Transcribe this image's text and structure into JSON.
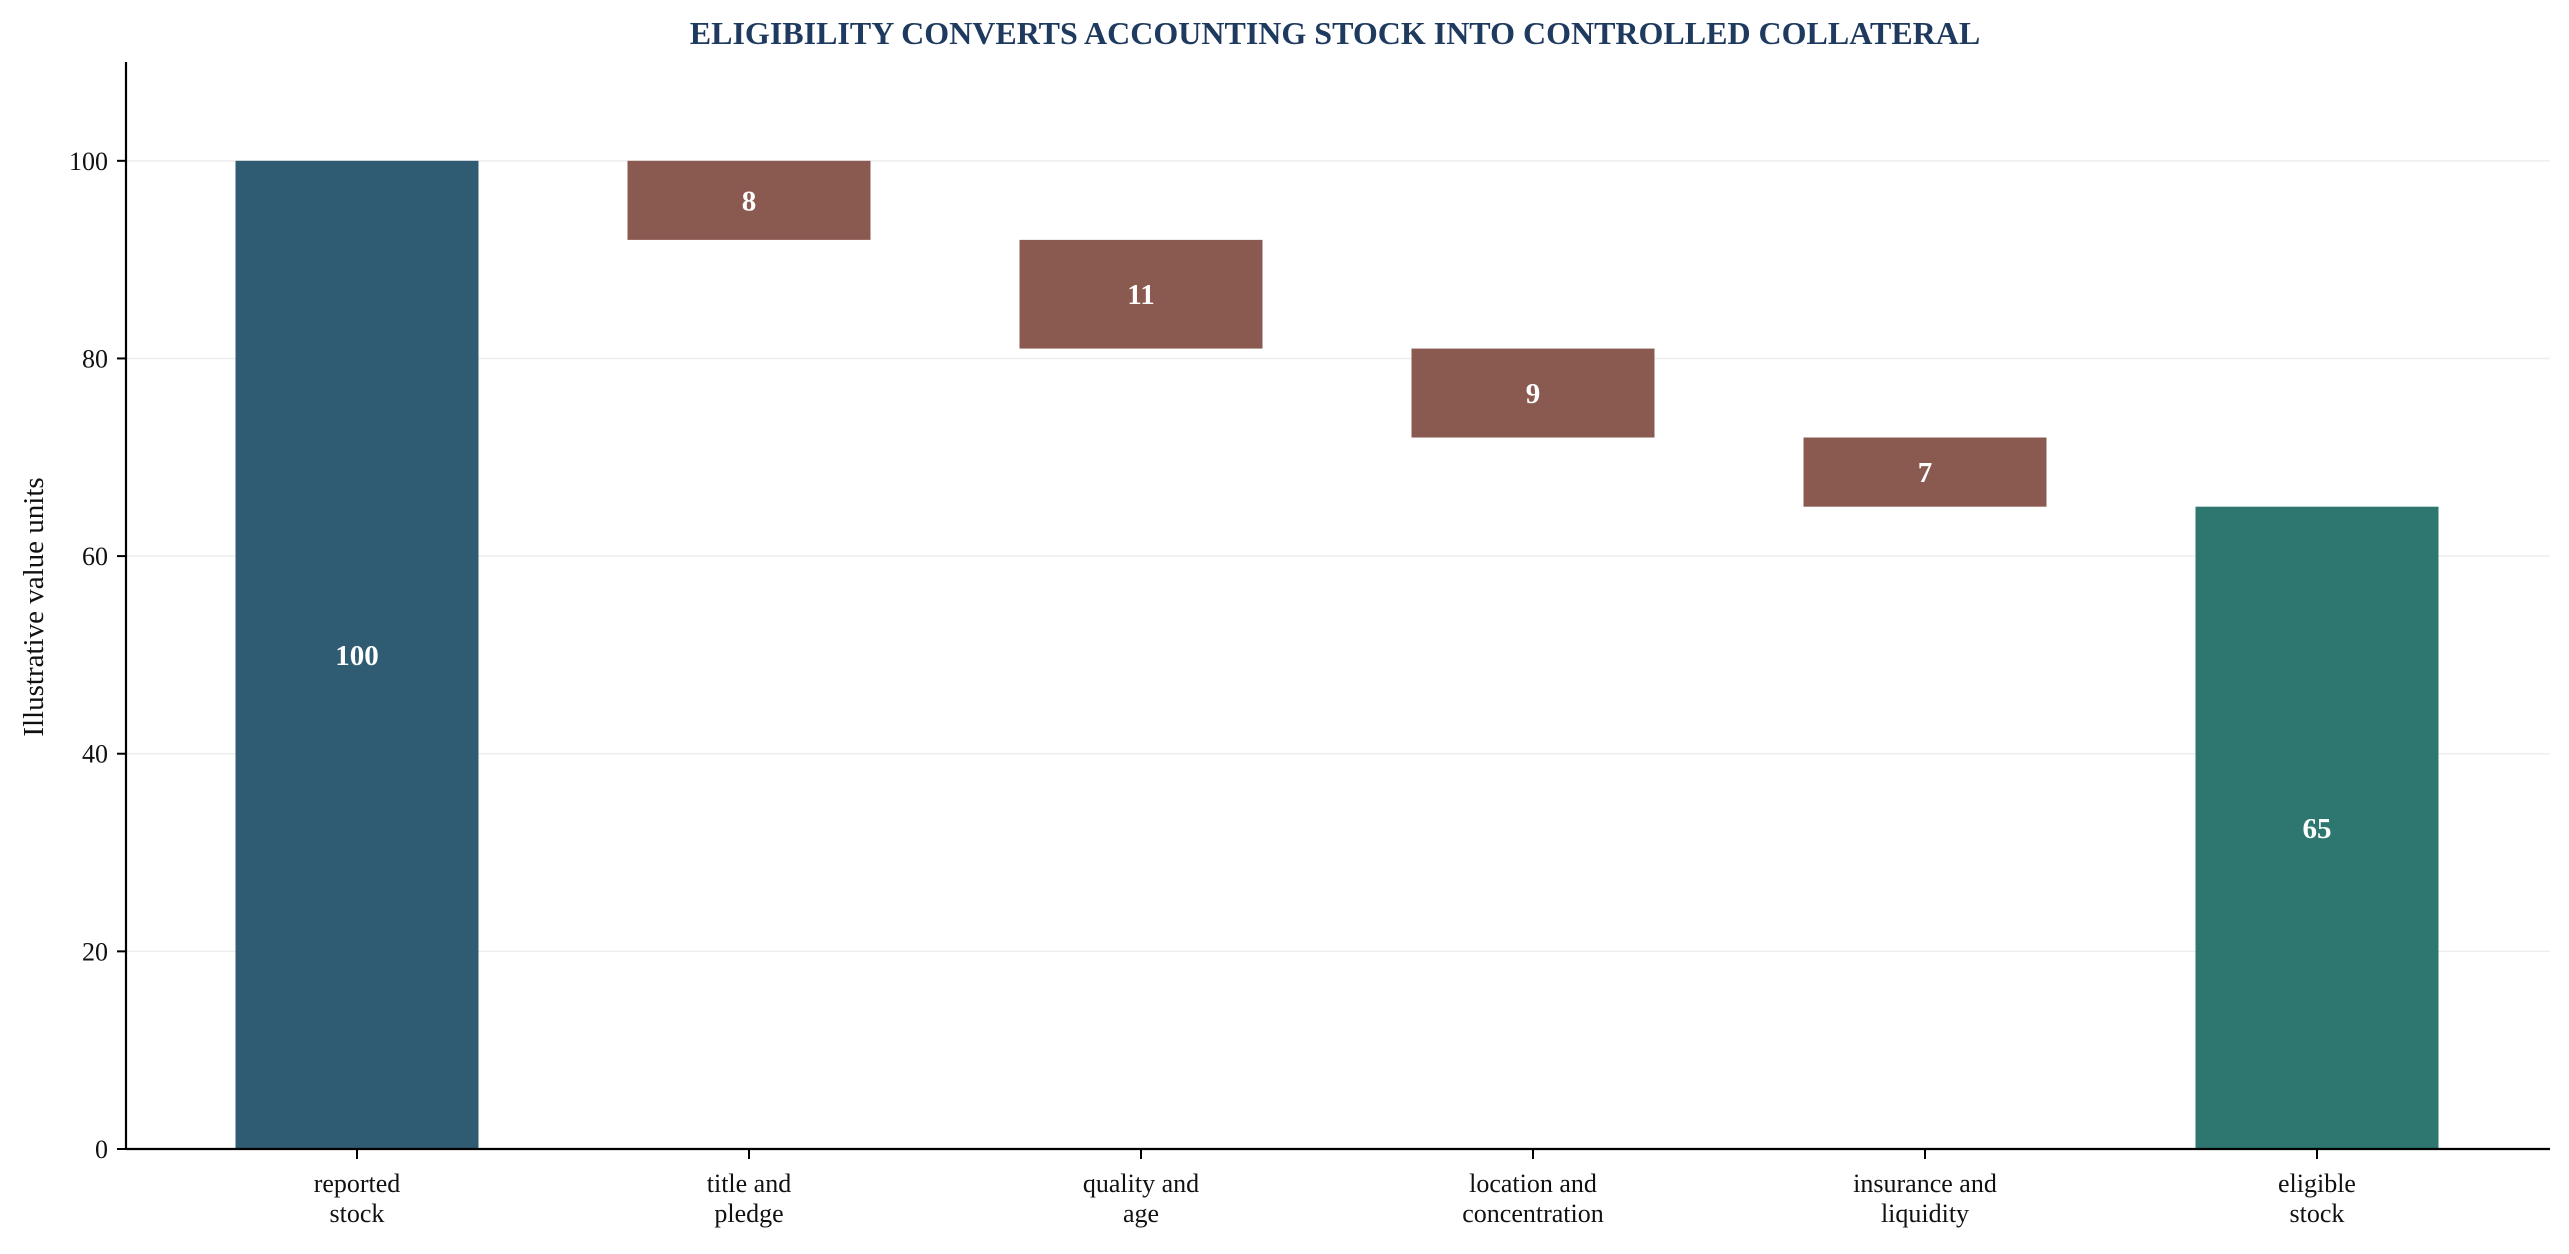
{
  "chart_data": {
    "type": "bar",
    "subtype": "waterfall",
    "title": "ELIGIBILITY CONVERTS ACCOUNTING STOCK INTO CONTROLLED COLLATERAL",
    "xlabel": "",
    "ylabel": "Illustrative value units",
    "ylim": [
      0,
      110
    ],
    "yticks": [
      0,
      20,
      40,
      60,
      80,
      100
    ],
    "grid": "horizontal",
    "legend": "none",
    "categories": [
      [
        "reported",
        "stock"
      ],
      [
        "title and",
        "pledge"
      ],
      [
        "quality and",
        "age"
      ],
      [
        "location and",
        "concentration"
      ],
      [
        "insurance and",
        "liquidity"
      ],
      [
        "eligible",
        "stock"
      ]
    ],
    "steps": [
      {
        "kind": "total",
        "start": 0,
        "end": 100,
        "label": "100"
      },
      {
        "kind": "decrease",
        "start": 100,
        "end": 92,
        "label": "8"
      },
      {
        "kind": "decrease",
        "start": 92,
        "end": 81,
        "label": "11"
      },
      {
        "kind": "decrease",
        "start": 81,
        "end": 72,
        "label": "9"
      },
      {
        "kind": "decrease",
        "start": 72,
        "end": 65,
        "label": "7"
      },
      {
        "kind": "total",
        "start": 0,
        "end": 65,
        "label": "65"
      }
    ],
    "colors": {
      "start_total": "#2f5b73",
      "decrease": "#8a5a51",
      "end_total": "#2e7771",
      "title": "#1f3a5f"
    }
  }
}
